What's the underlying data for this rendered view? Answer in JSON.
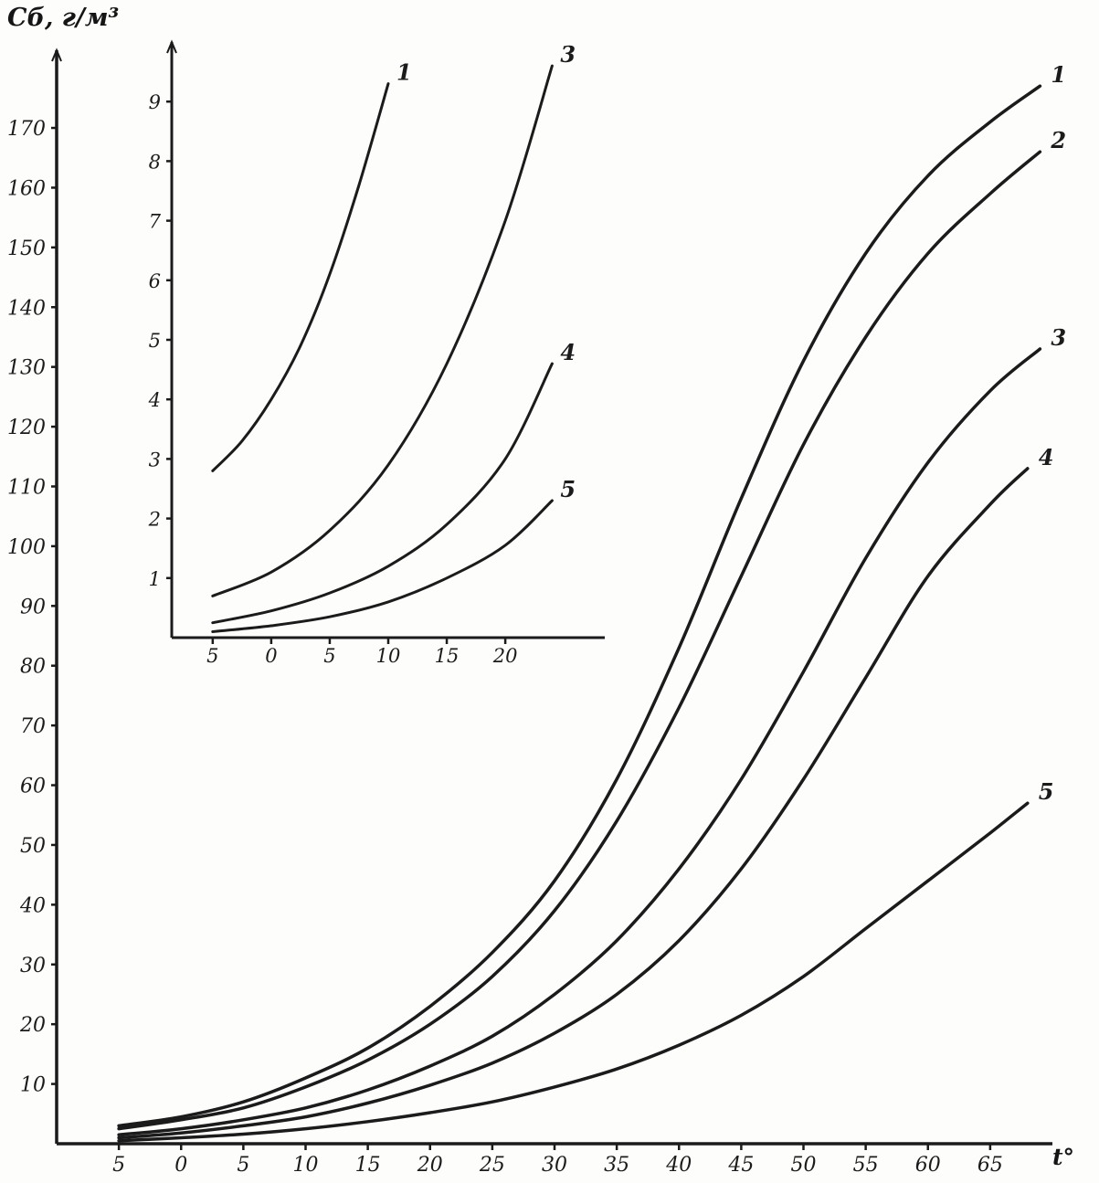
{
  "page": {
    "background": "#fdfdfc",
    "ink_color": "#1b1b1b",
    "description": "Scanned black-and-white scientific figure: family of rising concentration curves vs temperature, with zoomed inset in upper-left"
  },
  "chart_data": [
    {
      "id": "main",
      "type": "line",
      "title": "",
      "ylabel": "Сб, г/м³",
      "xlabel": "t°",
      "xlim": [
        -10,
        70
      ],
      "ylim": [
        0,
        183
      ],
      "grid": false,
      "legend": "curve-end numeric labels",
      "x_ticks": [
        -5,
        0,
        5,
        10,
        15,
        20,
        25,
        30,
        35,
        40,
        45,
        50,
        55,
        60,
        65
      ],
      "x_tick_labels": [
        "5",
        "0",
        "5",
        "10",
        "15",
        "20",
        "25",
        "30",
        "35",
        "40",
        "45",
        "50",
        "55",
        "60",
        "65"
      ],
      "y_ticks": [
        10,
        20,
        30,
        40,
        50,
        60,
        70,
        80,
        90,
        100,
        110,
        120,
        130,
        140,
        150,
        160,
        170
      ],
      "y_tick_labels": [
        "10",
        "20",
        "30",
        "40",
        "50",
        "60",
        "70",
        "80",
        "90",
        "100",
        "110",
        "120",
        "130",
        "140",
        "150",
        "160",
        "170"
      ],
      "series": [
        {
          "label": "1",
          "points": [
            [
              -5,
              3
            ],
            [
              0,
              4.5
            ],
            [
              5,
              7
            ],
            [
              10,
              11
            ],
            [
              15,
              16
            ],
            [
              20,
              23
            ],
            [
              25,
              32
            ],
            [
              30,
              44
            ],
            [
              35,
              61
            ],
            [
              40,
              83
            ],
            [
              45,
              108
            ],
            [
              50,
              131
            ],
            [
              55,
              149
            ],
            [
              60,
              162
            ],
            [
              65,
              171
            ],
            [
              69,
              177
            ]
          ]
        },
        {
          "label": "2",
          "points": [
            [
              -5,
              2.5
            ],
            [
              0,
              4
            ],
            [
              5,
              6
            ],
            [
              10,
              9.5
            ],
            [
              15,
              14
            ],
            [
              20,
              20
            ],
            [
              25,
              28
            ],
            [
              30,
              39
            ],
            [
              35,
              54
            ],
            [
              40,
              73
            ],
            [
              45,
              95
            ],
            [
              50,
              117
            ],
            [
              55,
              135
            ],
            [
              60,
              149
            ],
            [
              65,
              159
            ],
            [
              69,
              166
            ]
          ]
        },
        {
          "label": "3",
          "points": [
            [
              -5,
              1.5
            ],
            [
              0,
              2.5
            ],
            [
              5,
              4
            ],
            [
              10,
              6
            ],
            [
              15,
              9
            ],
            [
              20,
              13
            ],
            [
              25,
              18
            ],
            [
              30,
              25
            ],
            [
              35,
              34
            ],
            [
              40,
              46
            ],
            [
              45,
              61
            ],
            [
              50,
              79
            ],
            [
              55,
              98
            ],
            [
              60,
              114
            ],
            [
              65,
              126
            ],
            [
              69,
              133
            ]
          ]
        },
        {
          "label": "4",
          "points": [
            [
              -5,
              1
            ],
            [
              0,
              1.8
            ],
            [
              5,
              3
            ],
            [
              10,
              4.5
            ],
            [
              15,
              6.8
            ],
            [
              20,
              9.8
            ],
            [
              25,
              13.5
            ],
            [
              30,
              18.5
            ],
            [
              35,
              25
            ],
            [
              40,
              34
            ],
            [
              45,
              46
            ],
            [
              50,
              61
            ],
            [
              55,
              78
            ],
            [
              60,
              95
            ],
            [
              65,
              107
            ],
            [
              68,
              113
            ]
          ]
        },
        {
          "label": "5",
          "points": [
            [
              -5,
              0.5
            ],
            [
              0,
              1
            ],
            [
              5,
              1.6
            ],
            [
              10,
              2.5
            ],
            [
              15,
              3.7
            ],
            [
              20,
              5.2
            ],
            [
              25,
              7
            ],
            [
              30,
              9.5
            ],
            [
              35,
              12.5
            ],
            [
              40,
              16.5
            ],
            [
              45,
              21.5
            ],
            [
              50,
              28
            ],
            [
              55,
              36
            ],
            [
              60,
              44
            ],
            [
              65,
              52
            ],
            [
              68,
              57
            ]
          ]
        }
      ]
    },
    {
      "id": "inset",
      "type": "line",
      "title": "",
      "ylabel": "",
      "xlabel": "",
      "xlim": [
        -8.5,
        28.5
      ],
      "ylim": [
        0,
        10
      ],
      "grid": false,
      "legend": "curve-end numeric labels",
      "x_ticks": [
        -5,
        0,
        5,
        10,
        15,
        20
      ],
      "x_tick_labels": [
        "5",
        "0",
        "5",
        "10",
        "15",
        "20"
      ],
      "y_ticks": [
        1,
        2,
        3,
        4,
        5,
        6,
        7,
        8,
        9
      ],
      "y_tick_labels": [
        "1",
        "2",
        "3",
        "4",
        "5",
        "6",
        "7",
        "8",
        "9"
      ],
      "series": [
        {
          "label": "1",
          "points": [
            [
              -5,
              2.8
            ],
            [
              -2.5,
              3.3
            ],
            [
              0,
              4
            ],
            [
              2.5,
              4.9
            ],
            [
              5,
              6.1
            ],
            [
              7.5,
              7.6
            ],
            [
              10,
              9.3
            ]
          ]
        },
        {
          "label": "3",
          "points": [
            [
              -5,
              0.7
            ],
            [
              0,
              1.1
            ],
            [
              5,
              1.8
            ],
            [
              10,
              2.9
            ],
            [
              15,
              4.6
            ],
            [
              20,
              7
            ],
            [
              24,
              9.6
            ]
          ]
        },
        {
          "label": "4",
          "points": [
            [
              -5,
              0.25
            ],
            [
              0,
              0.45
            ],
            [
              5,
              0.75
            ],
            [
              10,
              1.2
            ],
            [
              15,
              1.9
            ],
            [
              20,
              3
            ],
            [
              24,
              4.6
            ]
          ]
        },
        {
          "label": "5",
          "points": [
            [
              -5,
              0.1
            ],
            [
              0,
              0.2
            ],
            [
              5,
              0.35
            ],
            [
              10,
              0.6
            ],
            [
              15,
              1
            ],
            [
              20,
              1.55
            ],
            [
              24,
              2.3
            ]
          ]
        }
      ]
    }
  ]
}
